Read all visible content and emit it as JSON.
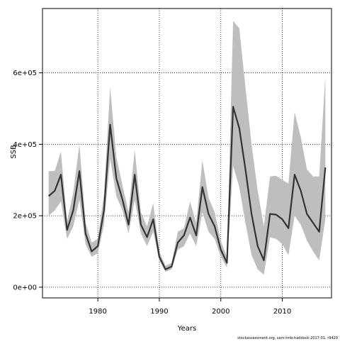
{
  "chart_data": {
    "type": "line",
    "title": "",
    "xlabel": "Years",
    "ylabel": "SSB",
    "xlim": [
      1971,
      2018
    ],
    "ylim": [
      -30000,
      780000
    ],
    "grid": true,
    "xticks": [
      1980,
      1990,
      2000,
      2010
    ],
    "xtick_labels": [
      "1980",
      "1990",
      "2000",
      "2010"
    ],
    "yticks": [
      0,
      200000,
      400000,
      600000
    ],
    "ytick_labels": [
      "0e+00",
      "2e+05",
      "4e+05",
      "6e+05"
    ],
    "line_color": "#333333",
    "band_color": "#bebebe",
    "series": [
      {
        "band": "confidence",
        "x": [
          1972,
          1973,
          1974,
          1975,
          1976,
          1977,
          1978,
          1979,
          1980,
          1981,
          1982,
          1983,
          1984,
          1985,
          1986,
          1987,
          1988,
          1989,
          1990,
          1991,
          1992,
          1993,
          1994,
          1995,
          1996,
          1997,
          1998,
          1999,
          2000,
          2001,
          2002,
          2003,
          2004,
          2005,
          2006,
          2007,
          2008,
          2009,
          2010,
          2011,
          2012,
          2013,
          2014,
          2015,
          2016,
          2017
        ],
        "y": [
          255000,
          270000,
          315000,
          160000,
          215000,
          325000,
          150000,
          100000,
          115000,
          215000,
          455000,
          305000,
          245000,
          175000,
          315000,
          175000,
          140000,
          190000,
          85000,
          50000,
          58000,
          125000,
          145000,
          195000,
          145000,
          280000,
          205000,
          170000,
          105000,
          68000,
          505000,
          445000,
          330000,
          205000,
          115000,
          75000,
          205000,
          203000,
          190000,
          165000,
          315000,
          270000,
          205000,
          180000,
          155000,
          335000
        ],
        "lower": [
          200000,
          215000,
          240000,
          135000,
          170000,
          245000,
          120000,
          85000,
          95000,
          175000,
          360000,
          255000,
          215000,
          150000,
          245000,
          150000,
          115000,
          155000,
          75000,
          43000,
          50000,
          105000,
          115000,
          150000,
          115000,
          210000,
          155000,
          135000,
          85000,
          55000,
          340000,
          280000,
          180000,
          90000,
          50000,
          35000,
          140000,
          135000,
          120000,
          90000,
          200000,
          175000,
          130000,
          100000,
          75000,
          190000
        ],
        "upper": [
          325000,
          325000,
          380000,
          185000,
          265000,
          400000,
          180000,
          125000,
          135000,
          260000,
          560000,
          365000,
          285000,
          210000,
          385000,
          210000,
          170000,
          235000,
          100000,
          60000,
          68000,
          155000,
          165000,
          240000,
          180000,
          355000,
          250000,
          210000,
          130000,
          85000,
          745000,
          725000,
          560000,
          400000,
          270000,
          170000,
          310000,
          312000,
          300000,
          290000,
          490000,
          420000,
          330000,
          310000,
          310000,
          590000
        ]
      }
    ]
  },
  "caption": "stockassessment.org, sam-tmb-haddock-2017-01, r9429"
}
